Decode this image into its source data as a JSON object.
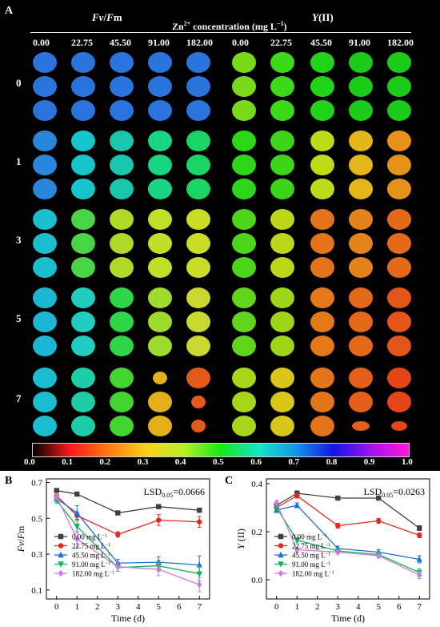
{
  "panelA": {
    "letter": "A",
    "headers": [
      {
        "italic": "Fv",
        "sep": "/",
        "italic2": "F",
        "rest": "m"
      },
      {
        "italic": "Y",
        "sep": "",
        "italic2": "",
        "rest": "(II)"
      }
    ],
    "conc_label_pre": "Zn",
    "conc_label_sup": "2+",
    "conc_label_post": " concentration (mg L",
    "conc_label_sup2": "−1",
    "conc_label_end": ")",
    "concentrations": [
      "0.00",
      "22.75",
      "45.50",
      "91.00",
      "182.00",
      "0.00",
      "22.75",
      "45.50",
      "91.00",
      "182.00"
    ],
    "days": [
      "0",
      "1",
      "3",
      "5",
      "7"
    ],
    "colorbar_ticks": [
      "0.0",
      "0.1",
      "0.2",
      "0.3",
      "0.4",
      "0.5",
      "0.6",
      "0.7",
      "0.8",
      "0.9",
      "1.0"
    ],
    "colorbar_stops": [
      "#000000",
      "#ff1a1a",
      "#ff7a14",
      "#ffcf1a",
      "#b8f025",
      "#19e619",
      "#14e6c8",
      "#1496e6",
      "#1414e6",
      "#a014f0",
      "#ff19d2"
    ]
  },
  "chart_data": [
    {
      "type": "line",
      "panel": "B",
      "ylabel_italic": "Fv",
      "ylabel_rest": "/",
      "ylabel_italic2": "F",
      "ylabel_end": "m",
      "xlabel": "Time (d)",
      "x": [
        0,
        1,
        3,
        5,
        7
      ],
      "xlim": [
        -0.5,
        7.5
      ],
      "ylim": [
        0.05,
        0.72
      ],
      "yticks": [
        0.1,
        0.3,
        0.5,
        0.7
      ],
      "xticks": [
        0,
        1,
        2,
        3,
        4,
        5,
        6,
        7
      ],
      "annotation_main": "LSD",
      "annotation_sub": "0.05",
      "annotation_val": "=0.0666",
      "series": [
        {
          "name": "0.00 mg L",
          "color": "#404040",
          "marker": "square",
          "values": [
            0.655,
            0.635,
            0.53,
            0.565,
            0.545
          ],
          "err": [
            0.01,
            0.01,
            0.008,
            0.01,
            0.01
          ]
        },
        {
          "name": "22.75 mg L",
          "color": "#e8261f",
          "marker": "circle",
          "values": [
            0.625,
            0.515,
            0.41,
            0.49,
            0.48
          ],
          "err": [
            0.01,
            0.02,
            0.015,
            0.03,
            0.03
          ]
        },
        {
          "name": "45.50 mg L",
          "color": "#1f6fd9",
          "marker": "triangle",
          "values": [
            0.61,
            0.53,
            0.25,
            0.255,
            0.24
          ],
          "err": [
            0.015,
            0.04,
            0.02,
            0.03,
            0.05
          ]
        },
        {
          "name": "91.00 mg L",
          "color": "#13b35a",
          "marker": "triangle-down",
          "values": [
            0.6,
            0.455,
            0.225,
            0.235,
            0.19
          ],
          "err": [
            0.015,
            0.035,
            0.02,
            0.03,
            0.04
          ]
        },
        {
          "name": "182.00 mg L",
          "color": "#cc7ae0",
          "marker": "diamond",
          "values": [
            0.62,
            0.385,
            0.23,
            0.215,
            0.13
          ],
          "err": [
            0.015,
            0.045,
            0.025,
            0.035,
            0.04
          ]
        }
      ]
    },
    {
      "type": "line",
      "panel": "C",
      "ylabel_italic": "Y",
      "ylabel_rest": " (II)",
      "xlabel": "Time (d)",
      "x": [
        0,
        1,
        3,
        5,
        7
      ],
      "xlim": [
        -0.5,
        7.5
      ],
      "ylim": [
        -0.08,
        0.42
      ],
      "yticks": [
        0.0,
        0.2,
        0.4
      ],
      "xticks": [
        0,
        1,
        2,
        3,
        4,
        5,
        6,
        7
      ],
      "annotation_main": "LSD",
      "annotation_sub": "0.05",
      "annotation_val": "=0.0263",
      "series": [
        {
          "name": "0.00 mg L",
          "color": "#404040",
          "marker": "square",
          "values": [
            0.31,
            0.36,
            0.34,
            0.34,
            0.215
          ],
          "err": [
            0.01,
            0.01,
            0.008,
            0.008,
            0.01
          ]
        },
        {
          "name": "22.75 mg L",
          "color": "#e8261f",
          "marker": "circle",
          "values": [
            0.3,
            0.35,
            0.225,
            0.245,
            0.185
          ],
          "err": [
            0.01,
            0.01,
            0.01,
            0.01,
            0.01
          ]
        },
        {
          "name": "45.50 mg L",
          "color": "#1f6fd9",
          "marker": "triangle",
          "values": [
            0.29,
            0.31,
            0.13,
            0.115,
            0.085
          ],
          "err": [
            0.01,
            0.01,
            0.01,
            0.01,
            0.015
          ]
        },
        {
          "name": "91.00 mg L",
          "color": "#13b35a",
          "marker": "triangle-down",
          "values": [
            0.3,
            0.165,
            0.12,
            0.105,
            0.03
          ],
          "err": [
            0.01,
            0.008,
            0.008,
            0.01,
            0.015
          ]
        },
        {
          "name": "182.00 mg L",
          "color": "#cc7ae0",
          "marker": "diamond",
          "values": [
            0.32,
            0.125,
            0.115,
            0.1,
            0.02
          ],
          "err": [
            0.01,
            0.008,
            0.008,
            0.01,
            0.015
          ]
        }
      ]
    }
  ],
  "legend_unit_sup": "−1"
}
